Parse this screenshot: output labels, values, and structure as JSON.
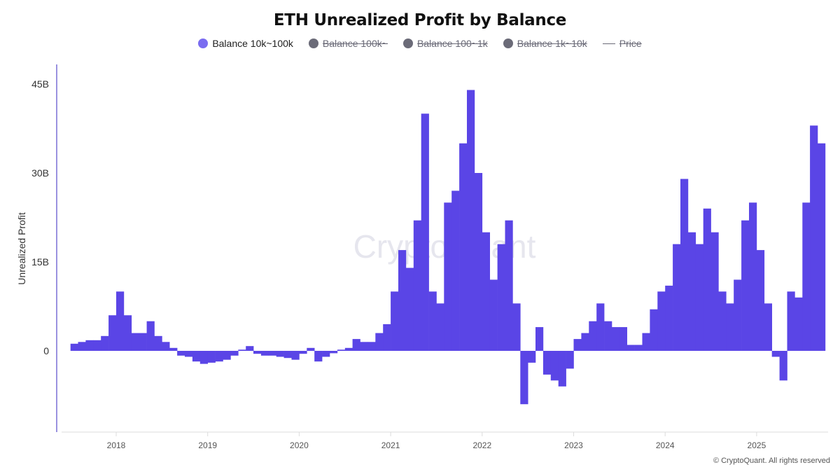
{
  "chart_data": {
    "type": "bar",
    "title": "ETH Unrealized Profit by Balance",
    "ylabel": "Unrealized Profit",
    "xlabel": "",
    "ylim": [
      -13.7,
      46
    ],
    "y_unit": "B",
    "yticks": [
      {
        "value": 0,
        "label": "0"
      },
      {
        "value": 15,
        "label": "15B"
      },
      {
        "value": 30,
        "label": "30B"
      },
      {
        "value": 45,
        "label": "45B"
      }
    ],
    "xticks": [
      "2018",
      "2019",
      "2020",
      "2021",
      "2022",
      "2023",
      "2024",
      "2025"
    ],
    "grid": false,
    "legend_position": "top",
    "legend": [
      {
        "label": "Balance 10k~100k",
        "active": true,
        "color": "#7a6cf0",
        "marker": "dot"
      },
      {
        "label": "Balance 100k~",
        "active": false,
        "color": "#6b6b78",
        "marker": "dot"
      },
      {
        "label": "Balance 100~1k",
        "active": false,
        "color": "#6b6b78",
        "marker": "dot"
      },
      {
        "label": "Balance 1k~10k",
        "active": false,
        "color": "#6b6b78",
        "marker": "dot"
      },
      {
        "label": "Price",
        "active": false,
        "color": "#6b6b78",
        "marker": "line"
      }
    ],
    "series": [
      {
        "name": "Balance 10k~100k",
        "color": "#5a45e6",
        "x": [
          "2017-07",
          "2017-08",
          "2017-09",
          "2017-10",
          "2017-11",
          "2017-12",
          "2018-01",
          "2018-02",
          "2018-03",
          "2018-04",
          "2018-05",
          "2018-06",
          "2018-07",
          "2018-08",
          "2018-09",
          "2018-10",
          "2018-11",
          "2018-12",
          "2019-01",
          "2019-02",
          "2019-03",
          "2019-04",
          "2019-05",
          "2019-06",
          "2019-07",
          "2019-08",
          "2019-09",
          "2019-10",
          "2019-11",
          "2019-12",
          "2020-01",
          "2020-02",
          "2020-03",
          "2020-04",
          "2020-05",
          "2020-06",
          "2020-07",
          "2020-08",
          "2020-09",
          "2020-10",
          "2020-11",
          "2020-12",
          "2021-01",
          "2021-02",
          "2021-03",
          "2021-04",
          "2021-05",
          "2021-06",
          "2021-07",
          "2021-08",
          "2021-09",
          "2021-10",
          "2021-11",
          "2021-12",
          "2022-01",
          "2022-02",
          "2022-03",
          "2022-04",
          "2022-05",
          "2022-06",
          "2022-07",
          "2022-08",
          "2022-09",
          "2022-10",
          "2022-11",
          "2022-12",
          "2023-01",
          "2023-02",
          "2023-03",
          "2023-04",
          "2023-05",
          "2023-06",
          "2023-07",
          "2023-08",
          "2023-09",
          "2023-10",
          "2023-11",
          "2023-12",
          "2024-01",
          "2024-02",
          "2024-03",
          "2024-04",
          "2024-05",
          "2024-06",
          "2024-07",
          "2024-08",
          "2024-09",
          "2024-10",
          "2024-11",
          "2024-12",
          "2025-01",
          "2025-02",
          "2025-03",
          "2025-04",
          "2025-05",
          "2025-06",
          "2025-07",
          "2025-08",
          "2025-09"
        ],
        "values": [
          1.2,
          1.5,
          1.8,
          1.8,
          2.5,
          6,
          10,
          6,
          3,
          3,
          5,
          2.5,
          1.5,
          0.5,
          -0.8,
          -1,
          -1.8,
          -2.2,
          -2,
          -1.8,
          -1.5,
          -0.8,
          0.2,
          0.8,
          -0.5,
          -0.8,
          -0.8,
          -1,
          -1.2,
          -1.5,
          -0.5,
          0.5,
          -1.8,
          -1,
          -0.4,
          0.2,
          0.5,
          2,
          1.5,
          1.5,
          3,
          4.5,
          10,
          17,
          14,
          22,
          40,
          10,
          8,
          25,
          27,
          35,
          44,
          30,
          20,
          12,
          18,
          22,
          8,
          -9,
          -2,
          4,
          -4,
          -5,
          -6,
          -3,
          2,
          3,
          5,
          8,
          5,
          4,
          4,
          1,
          1,
          3,
          7,
          10,
          11,
          18,
          29,
          20,
          18,
          24,
          20,
          10,
          8,
          12,
          22,
          25,
          17,
          8,
          -1,
          -5,
          10,
          9,
          25,
          38,
          35
        ]
      }
    ]
  },
  "watermark": "CryptoQuant",
  "footer": "© CryptoQuant. All rights reserved"
}
